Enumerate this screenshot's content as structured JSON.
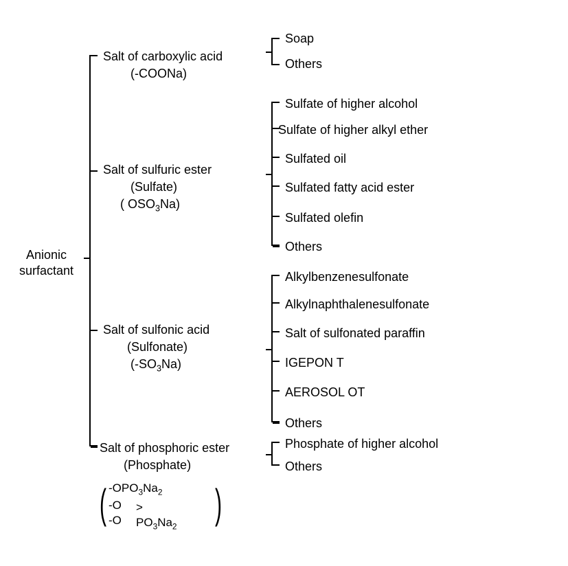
{
  "type": "tree",
  "background_color": "#ffffff",
  "text_color": "#000000",
  "bracket_color": "#000000",
  "font_size_main": 18,
  "root": {
    "line1": "Anionic",
    "line2": "surfactant"
  },
  "branches": [
    {
      "title": "Salt of carboxylic acid",
      "sub1": "(-COONa)",
      "leaves": [
        "Soap",
        "Others"
      ]
    },
    {
      "title": "Salt of sulfuric ester",
      "sub1": "(Sulfate)",
      "sub2_html": "(  OSO<sub>3</sub>Na)",
      "leaves": [
        "Sulfate of higher alcohol",
        "Sulfate of higher alkyl ether",
        "Sulfated oil",
        "Sulfated fatty acid ester",
        "Sulfated olefin",
        "Others"
      ]
    },
    {
      "title": "Salt of sulfonic acid",
      "sub1": "(Sulfonate)",
      "sub2_html": "(-SO<sub>3</sub>Na)",
      "leaves": [
        "Alkylbenzenesulfonate",
        "Alkylnaphthalenesulfonate",
        "Salt of sulfonated paraffin",
        "IGEPON T",
        "AEROSOL OT",
        "Others"
      ]
    },
    {
      "title": "Salt of phosphoric ester",
      "sub1": "(Phosphate)",
      "formula_l1_html": "-OPO<sub>3</sub>Na<sub>2</sub>",
      "formula_l2": "-O",
      "formula_l3": "-O",
      "formula_r_html": "> PO<sub>3</sub>Na<sub>2</sub>",
      "leaves": [
        "Phosphate of higher alcohol",
        "Others"
      ]
    }
  ]
}
